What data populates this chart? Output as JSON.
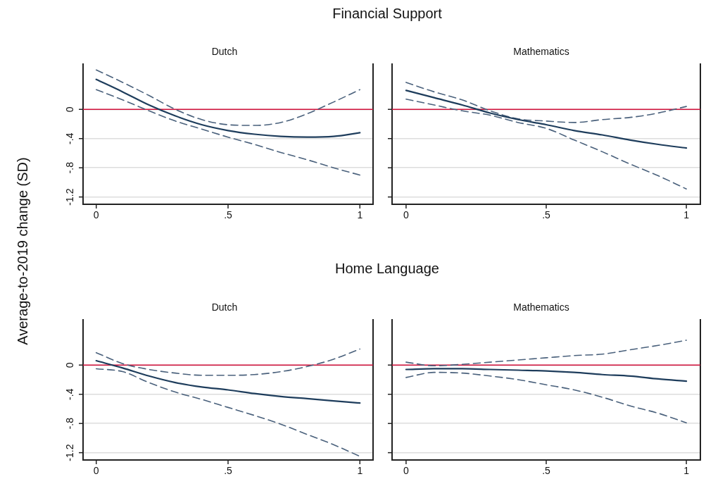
{
  "chart_data": [
    {
      "type": "line",
      "title": "Financial Support",
      "subtitle": "Dutch",
      "ylabel": "Average-to-2019 change (SD)",
      "x": [
        0,
        0.1,
        0.2,
        0.3,
        0.4,
        0.5,
        0.6,
        0.7,
        0.8,
        0.9,
        1
      ],
      "series": [
        {
          "color": "#1e3d5c",
          "line_style": "solid",
          "values": [
            0.41,
            0.24,
            0.06,
            -0.09,
            -0.21,
            -0.29,
            -0.34,
            -0.37,
            -0.38,
            -0.37,
            -0.32
          ]
        },
        {
          "color": "#4a617c",
          "line_style": "dashed",
          "values": [
            0.54,
            0.37,
            0.19,
            0.0,
            -0.14,
            -0.21,
            -0.22,
            -0.18,
            -0.06,
            0.1,
            0.27
          ]
        },
        {
          "color": "#4a617c",
          "line_style": "dashed",
          "values": [
            0.27,
            0.13,
            -0.02,
            -0.16,
            -0.27,
            -0.38,
            -0.48,
            -0.59,
            -0.69,
            -0.8,
            -0.9
          ]
        }
      ],
      "xlim": [
        -0.05,
        1.05
      ],
      "xticks": [
        {
          "value": 0,
          "label": "0"
        },
        {
          "value": 0.5,
          "label": ".5"
        },
        {
          "value": 1,
          "label": "1"
        }
      ],
      "ylim": [
        -1.3,
        0.62
      ],
      "yticks": [
        {
          "value": 0,
          "label": "0"
        },
        {
          "value": -0.4,
          "label": "-.4"
        },
        {
          "value": -0.8,
          "label": "-.8"
        },
        {
          "value": -1.2,
          "label": "-1.2"
        }
      ],
      "ref_lines": [
        {
          "axis": "y",
          "value": 0,
          "color": "#d0103a"
        }
      ],
      "grid": "y",
      "marker": "none"
    },
    {
      "type": "line",
      "subtitle": "Mathematics",
      "x": [
        0,
        0.1,
        0.2,
        0.3,
        0.4,
        0.5,
        0.6,
        0.7,
        0.8,
        0.9,
        1
      ],
      "series": [
        {
          "color": "#1e3d5c",
          "line_style": "solid",
          "values": [
            0.26,
            0.16,
            0.06,
            -0.05,
            -0.14,
            -0.21,
            -0.29,
            -0.35,
            -0.42,
            -0.48,
            -0.53
          ]
        },
        {
          "color": "#4a617c",
          "line_style": "dashed",
          "values": [
            0.37,
            0.24,
            0.13,
            -0.02,
            -0.13,
            -0.16,
            -0.18,
            -0.14,
            -0.11,
            -0.05,
            0.04
          ]
        },
        {
          "color": "#4a617c",
          "line_style": "dashed",
          "values": [
            0.14,
            0.06,
            -0.02,
            -0.08,
            -0.18,
            -0.26,
            -0.42,
            -0.58,
            -0.75,
            -0.91,
            -1.09
          ]
        }
      ],
      "xlim": [
        -0.05,
        1.05
      ],
      "xticks": [
        {
          "value": 0,
          "label": "0"
        },
        {
          "value": 0.5,
          "label": ".5"
        },
        {
          "value": 1,
          "label": "1"
        }
      ],
      "ylim": [
        -1.3,
        0.62
      ],
      "yticks": [
        {
          "value": 0,
          "label": null
        },
        {
          "value": -0.4,
          "label": null
        },
        {
          "value": -0.8,
          "label": null
        },
        {
          "value": -1.2,
          "label": null
        }
      ],
      "ref_lines": [
        {
          "axis": "y",
          "value": 0,
          "color": "#d0103a"
        }
      ],
      "grid": "y",
      "marker": "none",
      "tick_labels": "x"
    },
    {
      "type": "line",
      "title": "Home Language",
      "subtitle": "Dutch",
      "x": [
        0,
        0.1,
        0.2,
        0.3,
        0.4,
        0.5,
        0.6,
        0.7,
        0.8,
        0.9,
        1
      ],
      "series": [
        {
          "color": "#1e3d5c",
          "line_style": "solid",
          "values": [
            0.06,
            -0.04,
            -0.15,
            -0.24,
            -0.3,
            -0.34,
            -0.39,
            -0.43,
            -0.46,
            -0.49,
            -0.52
          ]
        },
        {
          "color": "#4a617c",
          "line_style": "dashed",
          "values": [
            0.17,
            0.02,
            -0.06,
            -0.11,
            -0.14,
            -0.14,
            -0.13,
            -0.09,
            -0.02,
            0.08,
            0.22
          ]
        },
        {
          "color": "#4a617c",
          "line_style": "dashed",
          "values": [
            -0.05,
            -0.09,
            -0.24,
            -0.37,
            -0.47,
            -0.58,
            -0.69,
            -0.81,
            -0.95,
            -1.09,
            -1.25
          ]
        }
      ],
      "xlim": [
        -0.05,
        1.05
      ],
      "xticks": [
        {
          "value": 0,
          "label": "0"
        },
        {
          "value": 0.5,
          "label": ".5"
        },
        {
          "value": 1,
          "label": "1"
        }
      ],
      "ylim": [
        -1.3,
        0.62
      ],
      "yticks": [
        {
          "value": 0,
          "label": "0"
        },
        {
          "value": -0.4,
          "label": "-.4"
        },
        {
          "value": -0.8,
          "label": "-.8"
        },
        {
          "value": -1.2,
          "label": "-1.2"
        }
      ],
      "ref_lines": [
        {
          "axis": "y",
          "value": 0,
          "color": "#d0103a"
        }
      ],
      "grid": "y",
      "marker": "none"
    },
    {
      "type": "line",
      "subtitle": "Mathematics",
      "x": [
        0,
        0.1,
        0.2,
        0.3,
        0.4,
        0.5,
        0.6,
        0.7,
        0.8,
        0.9,
        1
      ],
      "series": [
        {
          "color": "#1e3d5c",
          "line_style": "solid",
          "values": [
            -0.06,
            -0.05,
            -0.05,
            -0.06,
            -0.07,
            -0.08,
            -0.1,
            -0.13,
            -0.15,
            -0.19,
            -0.22
          ]
        },
        {
          "color": "#4a617c",
          "line_style": "dashed",
          "values": [
            0.04,
            -0.01,
            0.01,
            0.04,
            0.07,
            0.1,
            0.13,
            0.15,
            0.21,
            0.27,
            0.34
          ]
        },
        {
          "color": "#4a617c",
          "line_style": "dashed",
          "values": [
            -0.17,
            -0.1,
            -0.11,
            -0.15,
            -0.2,
            -0.27,
            -0.34,
            -0.44,
            -0.56,
            -0.66,
            -0.79
          ]
        }
      ],
      "xlim": [
        -0.05,
        1.05
      ],
      "xticks": [
        {
          "value": 0,
          "label": "0"
        },
        {
          "value": 0.5,
          "label": ".5"
        },
        {
          "value": 1,
          "label": "1"
        }
      ],
      "ylim": [
        -1.3,
        0.62
      ],
      "yticks": [
        {
          "value": 0,
          "label": null
        },
        {
          "value": -0.4,
          "label": null
        },
        {
          "value": -0.8,
          "label": null
        },
        {
          "value": -1.2,
          "label": null
        }
      ],
      "ref_lines": [
        {
          "axis": "y",
          "value": 0,
          "color": "#d0103a"
        }
      ],
      "grid": "y",
      "marker": "none",
      "tick_labels": "x"
    }
  ]
}
